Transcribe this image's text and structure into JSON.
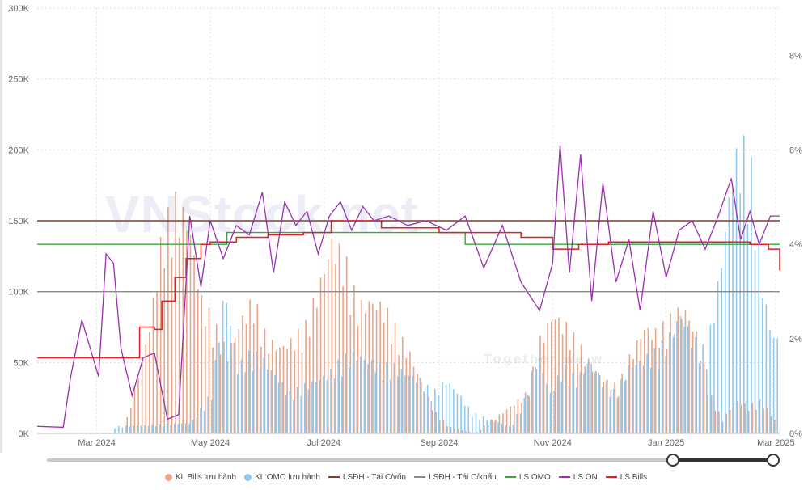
{
  "chart_data": {
    "type": "bar+line",
    "ylim_left": [
      0,
      300000
    ],
    "ylim_right": [
      0,
      0.09
    ],
    "y_left_ticks": [
      "0K",
      "50K",
      "100K",
      "150K",
      "200K",
      "250K",
      "300K"
    ],
    "y_right_ticks": [
      "0%",
      "2%",
      "4%",
      "6%",
      "8%"
    ],
    "x_ticks": [
      "Mar 2024",
      "May 2024",
      "Jul 2024",
      "Sep 2024",
      "Nov 2024",
      "Jan 2025",
      "Mar 2025"
    ],
    "x_range": [
      "2024-01-29",
      "2025-03-03"
    ],
    "legend": [
      "KL Bills lưu hành",
      "KL OMO lưu hành",
      "LSĐH - Tái C/vốn",
      "LSĐH - Tái C/khấu",
      "LS OMO",
      "LS ON",
      "LS Bills"
    ],
    "colors": {
      "bills_bar": "#e8a58a",
      "omo_bar": "#8ec9ef",
      "refinancing": "#7b3f2e",
      "discount": "#8a8a8a",
      "ls_omo": "#3aa83a",
      "ls_on": "#9b2fae",
      "ls_bills": "#e02020"
    },
    "watermark": "VNStock.net",
    "watermark_tagline": "Together we w",
    "series_bills_volume": [
      [
        "2024-03-15",
        0
      ],
      [
        "2024-03-22",
        40000
      ],
      [
        "2024-03-29",
        80000
      ],
      [
        "2024-04-05",
        150000
      ],
      [
        "2024-04-12",
        172000
      ],
      [
        "2024-04-19",
        160000
      ],
      [
        "2024-04-26",
        100000
      ],
      [
        "2024-05-03",
        80000
      ],
      [
        "2024-05-10",
        60000
      ],
      [
        "2024-05-17",
        85000
      ],
      [
        "2024-05-24",
        100000
      ],
      [
        "2024-05-31",
        70000
      ],
      [
        "2024-06-07",
        65000
      ],
      [
        "2024-06-14",
        70000
      ],
      [
        "2024-06-21",
        80000
      ],
      [
        "2024-06-28",
        110000
      ],
      [
        "2024-07-05",
        145000
      ],
      [
        "2024-07-12",
        130000
      ],
      [
        "2024-07-19",
        95000
      ],
      [
        "2024-07-26",
        100000
      ],
      [
        "2024-08-02",
        95000
      ],
      [
        "2024-08-09",
        75000
      ],
      [
        "2024-08-16",
        60000
      ],
      [
        "2024-08-23",
        35000
      ],
      [
        "2024-08-30",
        15000
      ],
      [
        "2024-09-06",
        5000
      ],
      [
        "2024-09-20",
        0
      ],
      [
        "2024-10-18",
        30000
      ],
      [
        "2024-10-25",
        70000
      ],
      [
        "2024-11-01",
        90000
      ],
      [
        "2024-11-08",
        80000
      ],
      [
        "2024-11-15",
        65000
      ],
      [
        "2024-11-22",
        50000
      ],
      [
        "2024-11-29",
        40000
      ],
      [
        "2024-12-06",
        35000
      ],
      [
        "2024-12-13",
        60000
      ],
      [
        "2024-12-20",
        80000
      ],
      [
        "2024-12-27",
        75000
      ],
      [
        "2025-01-03",
        85000
      ],
      [
        "2025-01-10",
        95000
      ],
      [
        "2025-01-17",
        75000
      ],
      [
        "2025-01-24",
        30000
      ],
      [
        "2025-01-31",
        10000
      ],
      [
        "2025-02-07",
        25000
      ],
      [
        "2025-02-14",
        20000
      ],
      [
        "2025-02-21",
        25000
      ],
      [
        "2025-02-28",
        10000
      ]
    ],
    "series_omo_volume": [
      [
        "2024-03-10",
        5000
      ],
      [
        "2024-04-20",
        8000
      ],
      [
        "2024-05-01",
        30000
      ],
      [
        "2024-05-08",
        110000
      ],
      [
        "2024-05-15",
        50000
      ],
      [
        "2024-05-22",
        60000
      ],
      [
        "2024-05-29",
        55000
      ],
      [
        "2024-06-12",
        30000
      ],
      [
        "2024-06-26",
        40000
      ],
      [
        "2024-07-03",
        45000
      ],
      [
        "2024-07-10",
        55000
      ],
      [
        "2024-07-17",
        60000
      ],
      [
        "2024-07-24",
        55000
      ],
      [
        "2024-07-31",
        50000
      ],
      [
        "2024-08-07",
        50000
      ],
      [
        "2024-08-14",
        45000
      ],
      [
        "2024-08-21",
        40000
      ],
      [
        "2024-08-28",
        30000
      ],
      [
        "2024-09-04",
        40000
      ],
      [
        "2024-09-11",
        30000
      ],
      [
        "2024-09-18",
        15000
      ],
      [
        "2024-10-09",
        5000
      ],
      [
        "2024-10-16",
        25000
      ],
      [
        "2024-10-23",
        60000
      ],
      [
        "2024-10-30",
        30000
      ],
      [
        "2024-11-06",
        50000
      ],
      [
        "2024-11-13",
        40000
      ],
      [
        "2024-11-20",
        55000
      ],
      [
        "2024-11-27",
        40000
      ],
      [
        "2024-12-04",
        30000
      ],
      [
        "2024-12-11",
        50000
      ],
      [
        "2024-12-18",
        55000
      ],
      [
        "2024-12-25",
        60000
      ],
      [
        "2025-01-01",
        70000
      ],
      [
        "2025-01-08",
        90000
      ],
      [
        "2025-01-15",
        70000
      ],
      [
        "2025-01-22",
        60000
      ],
      [
        "2025-01-29",
        120000
      ],
      [
        "2025-02-05",
        200000
      ],
      [
        "2025-02-10",
        215000
      ],
      [
        "2025-02-15",
        195000
      ],
      [
        "2025-02-20",
        120000
      ],
      [
        "2025-02-25",
        80000
      ],
      [
        "2025-03-01",
        70000
      ]
    ],
    "series_refinancing_rate": {
      "value": 0.045,
      "label": "LSĐH - Tái C/vốn"
    },
    "series_discount_rate": {
      "value": 0.03,
      "label": "LSĐH - Tái C/khấu"
    },
    "series_ls_omo": [
      [
        "2024-01-29",
        0.04
      ],
      [
        "2024-05-10",
        0.04
      ],
      [
        "2024-05-10",
        0.0425
      ],
      [
        "2024-09-15",
        0.0425
      ],
      [
        "2024-09-15",
        0.04
      ],
      [
        "2025-03-03",
        0.04
      ]
    ],
    "series_ls_on": [
      [
        "2024-01-29",
        0.0015
      ],
      [
        "2024-02-12",
        0.0013
      ],
      [
        "2024-02-16",
        0.012
      ],
      [
        "2024-02-22",
        0.024
      ],
      [
        "2024-02-28",
        0.016
      ],
      [
        "2024-03-02",
        0.012
      ],
      [
        "2024-03-06",
        0.038
      ],
      [
        "2024-03-10",
        0.036
      ],
      [
        "2024-03-14",
        0.018
      ],
      [
        "2024-03-20",
        0.008
      ],
      [
        "2024-03-26",
        0.016
      ],
      [
        "2024-04-01",
        0.017
      ],
      [
        "2024-04-08",
        0.003
      ],
      [
        "2024-04-14",
        0.004
      ],
      [
        "2024-04-20",
        0.046
      ],
      [
        "2024-04-26",
        0.031
      ],
      [
        "2024-05-01",
        0.045
      ],
      [
        "2024-05-08",
        0.037
      ],
      [
        "2024-05-15",
        0.044
      ],
      [
        "2024-05-22",
        0.042
      ],
      [
        "2024-05-29",
        0.051
      ],
      [
        "2024-06-04",
        0.034
      ],
      [
        "2024-06-10",
        0.049
      ],
      [
        "2024-06-16",
        0.044
      ],
      [
        "2024-06-22",
        0.047
      ],
      [
        "2024-06-28",
        0.038
      ],
      [
        "2024-07-04",
        0.046
      ],
      [
        "2024-07-10",
        0.049
      ],
      [
        "2024-07-16",
        0.043
      ],
      [
        "2024-07-22",
        0.048
      ],
      [
        "2024-07-28",
        0.045
      ],
      [
        "2024-08-05",
        0.046
      ],
      [
        "2024-08-15",
        0.044
      ],
      [
        "2024-08-25",
        0.045
      ],
      [
        "2024-09-05",
        0.043
      ],
      [
        "2024-09-15",
        0.046
      ],
      [
        "2024-09-25",
        0.035
      ],
      [
        "2024-10-05",
        0.044
      ],
      [
        "2024-10-15",
        0.032
      ],
      [
        "2024-10-25",
        0.026
      ],
      [
        "2024-11-01",
        0.036
      ],
      [
        "2024-11-05",
        0.061
      ],
      [
        "2024-11-10",
        0.034
      ],
      [
        "2024-11-16",
        0.059
      ],
      [
        "2024-11-22",
        0.028
      ],
      [
        "2024-11-28",
        0.053
      ],
      [
        "2024-12-05",
        0.032
      ],
      [
        "2024-12-12",
        0.041
      ],
      [
        "2024-12-18",
        0.026
      ],
      [
        "2024-12-25",
        0.047
      ],
      [
        "2025-01-01",
        0.033
      ],
      [
        "2025-01-08",
        0.043
      ],
      [
        "2025-01-15",
        0.045
      ],
      [
        "2025-01-22",
        0.039
      ],
      [
        "2025-01-29",
        0.046
      ],
      [
        "2025-02-05",
        0.054
      ],
      [
        "2025-02-10",
        0.041
      ],
      [
        "2025-02-15",
        0.047
      ],
      [
        "2025-02-20",
        0.04
      ],
      [
        "2025-02-26",
        0.046
      ],
      [
        "2025-03-03",
        0.046
      ]
    ],
    "series_ls_bills": [
      [
        "2024-01-29",
        0.016
      ],
      [
        "2024-03-22",
        0.016
      ],
      [
        "2024-03-24",
        0.0225
      ],
      [
        "2024-04-01",
        0.022
      ],
      [
        "2024-04-05",
        0.028
      ],
      [
        "2024-04-12",
        0.033
      ],
      [
        "2024-04-18",
        0.037
      ],
      [
        "2024-04-26",
        0.04
      ],
      [
        "2024-05-01",
        0.0405
      ],
      [
        "2024-05-15",
        0.0415
      ],
      [
        "2024-06-01",
        0.042
      ],
      [
        "2024-06-20",
        0.0425
      ],
      [
        "2024-07-05",
        0.045
      ],
      [
        "2024-07-20",
        0.045
      ],
      [
        "2024-08-01",
        0.0435
      ],
      [
        "2024-09-01",
        0.0425
      ],
      [
        "2024-10-15",
        0.0415
      ],
      [
        "2024-11-01",
        0.039
      ],
      [
        "2024-11-15",
        0.04
      ],
      [
        "2024-12-01",
        0.0405
      ],
      [
        "2025-01-15",
        0.0405
      ],
      [
        "2025-02-15",
        0.04
      ],
      [
        "2025-02-25",
        0.039
      ],
      [
        "2025-03-03",
        0.0345
      ]
    ]
  },
  "legend_items": [
    {
      "label": "KL Bills lưu hành",
      "kind": "dot",
      "color": "#e8a58a"
    },
    {
      "label": "KL OMO lưu hành",
      "kind": "dot",
      "color": "#8ec9ef"
    },
    {
      "label": "LSĐH - Tái C/vốn",
      "kind": "line",
      "color": "#7b3f2e"
    },
    {
      "label": "LSĐH - Tái C/khấu",
      "kind": "line",
      "color": "#8a8a8a"
    },
    {
      "label": "LS OMO",
      "kind": "line",
      "color": "#3aa83a"
    },
    {
      "label": "LS ON",
      "kind": "line",
      "color": "#9b2fae"
    },
    {
      "label": "LS Bills",
      "kind": "line",
      "color": "#e02020"
    }
  ],
  "scrollbar": {
    "range_start_fraction": 0.86,
    "range_end_fraction": 1.0
  }
}
